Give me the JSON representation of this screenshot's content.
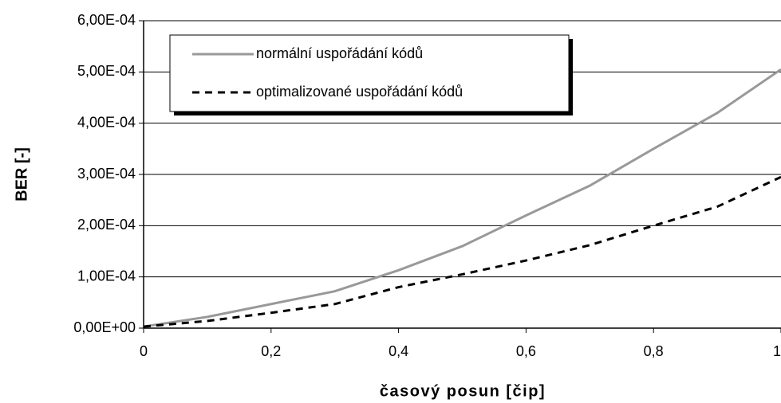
{
  "chart_data": {
    "type": "line",
    "x_label": "časový posun [čip]",
    "y_label": "BER [-]",
    "x": [
      0,
      0.1,
      0.2,
      0.3,
      0.4,
      0.5,
      0.6,
      0.7,
      0.8,
      0.9,
      1
    ],
    "series": [
      {
        "name": "normální uspořádání kódů",
        "color": "#999999",
        "dash": "solid",
        "values": [
          3e-06,
          2.2e-05,
          4.7e-05,
          7.2e-05,
          0.000113,
          0.00016,
          0.00022,
          0.000278,
          0.00035,
          0.00042,
          0.000505
        ]
      },
      {
        "name": "optimalizované uspořádání kódů",
        "color": "#000000",
        "dash": "dashed",
        "values": [
          3e-06,
          1.4e-05,
          3e-05,
          4.7e-05,
          8e-05,
          0.000105,
          0.000132,
          0.000162,
          0.0002,
          0.000237,
          0.000295
        ]
      }
    ],
    "xlim": [
      0,
      1
    ],
    "xticks": [
      0,
      {
        "value": 0.2,
        "label": "0,2"
      },
      {
        "value": 0.4,
        "label": "0,4"
      },
      {
        "value": 0.6,
        "label": "0,6"
      },
      {
        "value": 0.8,
        "label": "0,8"
      },
      1
    ],
    "ylim": [
      0,
      0.0006
    ],
    "yticks": [
      {
        "value": 0,
        "label": "0,00E+00"
      },
      {
        "value": 0.0001,
        "label": "1,00E-04"
      },
      {
        "value": 0.0002,
        "label": "2,00E-04"
      },
      {
        "value": 0.0003,
        "label": "3,00E-04"
      },
      {
        "value": 0.0004,
        "label": "4,00E-04"
      },
      {
        "value": 0.0005,
        "label": "5,00E-04"
      },
      {
        "value": 0.0006,
        "label": "6,00E-04"
      }
    ],
    "grid": true,
    "legend": "top-left"
  }
}
